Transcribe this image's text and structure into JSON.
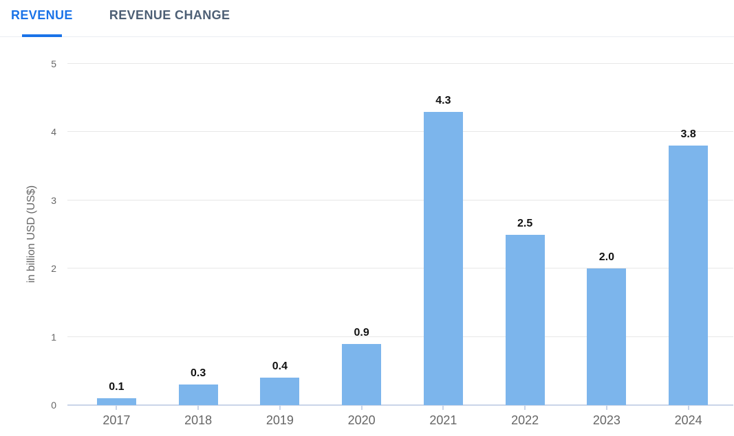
{
  "tab_bar": {
    "tabs": [
      {
        "label": "REVENUE",
        "active": true
      },
      {
        "label": "REVENUE CHANGE",
        "active": false
      }
    ]
  },
  "chart_data": {
    "type": "bar",
    "title": "",
    "categories": [
      "2017",
      "2018",
      "2019",
      "2020",
      "2021",
      "2022",
      "2023",
      "2024"
    ],
    "values": [
      0.1,
      0.3,
      0.4,
      0.9,
      4.3,
      2.5,
      2.0,
      3.8
    ],
    "value_labels": [
      "0.1",
      "0.3",
      "0.4",
      "0.9",
      "4.3",
      "2.5",
      "2.0",
      "3.8"
    ],
    "xlabel": "",
    "ylabel": "in billion USD (US$)",
    "ylim": [
      0,
      5
    ],
    "yticks": [
      0,
      1,
      2,
      3,
      4,
      5
    ],
    "grid": "horizontal",
    "legend": "none",
    "data_labels": "above bars"
  },
  "colors": {
    "accent": "#1a73e8",
    "tab_inactive": "#4d5f75",
    "bar": "#7cb5ec",
    "gridline": "#e7e7e7",
    "axis_line": "#c9d4e8",
    "axis_text": "#666666",
    "value_label": "#111111",
    "tab_divider": "#e9edf2"
  }
}
